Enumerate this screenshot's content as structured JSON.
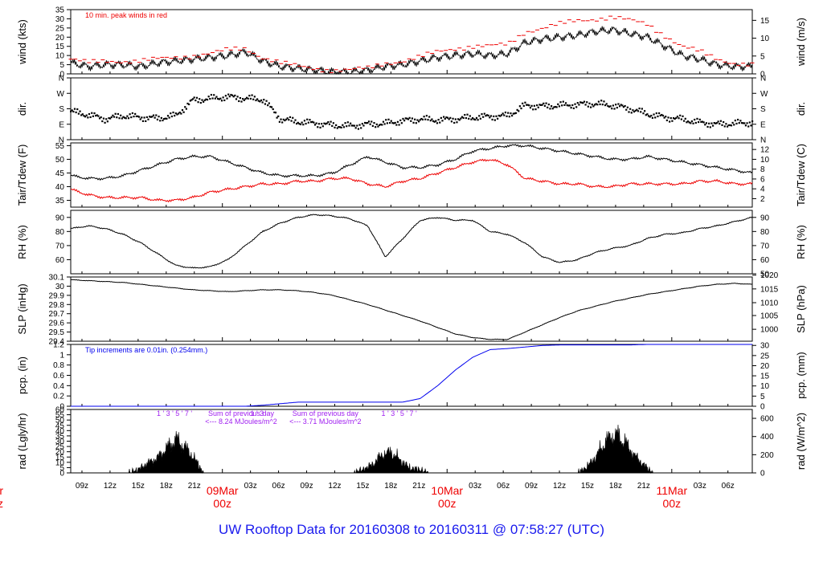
{
  "footer": {
    "title": "UW Rooftop Data for 20160308  to  20160311 @ 07:58:27  (UTC)"
  },
  "colors": {
    "series": "#000000",
    "red": "#ee0000",
    "blue": "#0000ee",
    "purple": "#a020f0"
  },
  "chart_data": [
    {
      "id": "wind",
      "type": "line",
      "ylabel": "wind (kts)",
      "ylabel_right": "wind (m/s)",
      "ylim": [
        0,
        35
      ],
      "yticks": [
        0,
        5,
        10,
        15,
        20,
        25,
        30,
        35
      ],
      "yticks_right": {
        "labels": [
          "0",
          "5",
          "10",
          "15"
        ],
        "positions": [
          0,
          9.72,
          19.44,
          29.16
        ]
      },
      "annotation": "10 min. peak winds in red",
      "series": [
        {
          "values": [
            6,
            4,
            5,
            5,
            4,
            6,
            7,
            8,
            9,
            10,
            12,
            7,
            4,
            3,
            2,
            1,
            1,
            2,
            4,
            5,
            7,
            9,
            10,
            11,
            10,
            11,
            17,
            19,
            20,
            21,
            23,
            24,
            22,
            20,
            15,
            10,
            8,
            5,
            4,
            4
          ]
        },
        {
          "marks": "dashes",
          "color": "red",
          "values": [
            8,
            6,
            7,
            7,
            7,
            8,
            9,
            10,
            11,
            13,
            14,
            9,
            6,
            4,
            3,
            2,
            2,
            3,
            6,
            7,
            9,
            12,
            14,
            15,
            15,
            16,
            23,
            25,
            27,
            29,
            30,
            31,
            29,
            27,
            21,
            15,
            12,
            8,
            6,
            5
          ]
        }
      ]
    },
    {
      "id": "dir",
      "type": "scatter",
      "ylabel": "dir.",
      "ylabel_right": "dir.",
      "ylim": [
        0,
        360
      ],
      "yticks": [
        0,
        90,
        180,
        270,
        360
      ],
      "yticklabels": [
        "N",
        "E",
        "S",
        "W",
        "N"
      ],
      "series": [
        {
          "values": [
            165,
            145,
            120,
            140,
            130,
            125,
            140,
            230,
            240,
            250,
            240,
            235,
            120,
            105,
            95,
            85,
            80,
            90,
            95,
            110,
            120,
            115,
            120,
            130,
            135,
            140,
            200,
            195,
            200,
            205,
            210,
            200,
            180,
            150,
            130,
            120,
            100,
            90,
            95,
            100
          ]
        }
      ]
    },
    {
      "id": "temp",
      "type": "line",
      "ylabel": "Tair/Tdew (F)",
      "ylabel_right": "Tair/Tdew (C)",
      "ylim": [
        32.5,
        56
      ],
      "yticks": [
        35,
        40,
        45,
        50,
        55
      ],
      "yticks_right": {
        "labels": [
          "2",
          "4",
          "6",
          "8",
          "10",
          "12"
        ],
        "positions": [
          35.6,
          39.2,
          42.8,
          46.4,
          50.0,
          53.6
        ]
      },
      "series": [
        {
          "name": "Tair",
          "color": "black",
          "values": [
            44,
            43,
            43,
            44,
            46,
            48,
            50,
            51,
            51,
            49,
            47,
            45,
            44,
            44,
            44,
            45,
            48,
            51,
            49,
            47,
            47,
            48,
            50,
            53,
            54,
            55,
            55,
            54,
            53,
            52,
            51,
            50,
            50,
            51,
            50,
            49,
            48,
            47,
            46,
            45
          ]
        },
        {
          "name": "Tdew",
          "color": "red",
          "values": [
            39,
            37,
            36,
            36,
            36,
            35,
            35,
            36,
            38,
            39,
            40,
            41,
            41,
            42,
            42,
            43,
            43,
            41,
            40,
            42,
            43,
            45,
            47,
            49,
            50,
            48,
            43,
            42,
            41,
            41,
            40,
            40,
            41,
            41,
            41,
            41,
            42,
            42,
            41,
            41
          ]
        }
      ]
    },
    {
      "id": "rh",
      "type": "line",
      "ylabel": "RH (%)",
      "ylabel_right": "RH (%)",
      "ylim": [
        50,
        95
      ],
      "yticks": [
        60,
        70,
        80,
        90
      ],
      "yticks_right": {
        "labels": [
          "50",
          "60",
          "70",
          "80",
          "90"
        ],
        "positions": [
          50,
          60,
          70,
          80,
          90
        ]
      },
      "series": [
        {
          "values": [
            82,
            84,
            82,
            78,
            72,
            64,
            56,
            54,
            55,
            60,
            70,
            80,
            86,
            90,
            92,
            91,
            89,
            84,
            62,
            75,
            88,
            90,
            88,
            88,
            80,
            78,
            72,
            62,
            58,
            60,
            65,
            68,
            70,
            75,
            78,
            79,
            82,
            84,
            87,
            90
          ]
        }
      ]
    },
    {
      "id": "slp",
      "type": "line",
      "ylabel": "SLP (inHg)",
      "ylabel_right": "SLP (hPa)",
      "ylim": [
        29.4,
        30.1
      ],
      "yticks": [
        29.4,
        29.5,
        29.6,
        29.7,
        29.8,
        29.9,
        30.0,
        30.1
      ],
      "yticks_right": {
        "labels": [
          "1000",
          "1005",
          "1010",
          "1015",
          "1020"
        ],
        "positions": [
          29.53,
          29.68,
          29.82,
          29.97,
          30.12
        ]
      },
      "series": [
        {
          "values": [
            30.07,
            30.06,
            30.05,
            30.04,
            30.02,
            30.0,
            29.98,
            29.96,
            29.95,
            29.94,
            29.95,
            29.96,
            29.96,
            29.95,
            29.93,
            29.9,
            29.85,
            29.8,
            29.74,
            29.68,
            29.62,
            29.55,
            29.48,
            29.44,
            29.42,
            29.42,
            29.5,
            29.58,
            29.66,
            29.73,
            29.78,
            29.83,
            29.87,
            29.91,
            29.94,
            29.97,
            30.0,
            30.02,
            30.03,
            30.02
          ]
        }
      ]
    },
    {
      "id": "pcp",
      "type": "line",
      "ylabel": "pcp. (in)",
      "ylabel_right": "pcp. (mm)",
      "ylim": [
        0,
        1.2
      ],
      "yticks": [
        0,
        0.2,
        0.4,
        0.6,
        0.8,
        1.0,
        1.2
      ],
      "yticks_right": {
        "labels": [
          "0",
          "5",
          "10",
          "15",
          "20",
          "25",
          "30"
        ],
        "positions": [
          0,
          0.197,
          0.394,
          0.591,
          0.787,
          0.984,
          1.181
        ]
      },
      "annotation": "Tip increments are 0.01in. (0.254mm.)",
      "series": [
        {
          "color": "blue",
          "values": [
            0,
            0,
            0,
            0,
            0,
            0,
            0,
            0,
            0,
            0,
            0,
            0.02,
            0.05,
            0.08,
            0.08,
            0.08,
            0.08,
            0.08,
            0.08,
            0.08,
            0.15,
            0.4,
            0.7,
            0.95,
            1.1,
            1.12,
            1.15,
            1.18,
            1.19,
            1.19,
            1.19,
            1.19,
            1.19,
            1.2,
            1.2,
            1.2,
            1.21,
            1.21,
            1.21,
            1.21
          ]
        }
      ]
    },
    {
      "id": "rad",
      "type": "area",
      "ylabel": "rad (Lgly/hr)",
      "ylabel_right": "rad (W/m^2)",
      "ylim": [
        0,
        60
      ],
      "yticks": [
        0,
        5,
        10,
        15,
        20,
        25,
        30,
        35,
        40,
        45,
        50,
        55,
        60
      ],
      "yticks_right": {
        "labels": [
          "0",
          "200",
          "400",
          "600"
        ],
        "positions": [
          0,
          17.2,
          34.4,
          51.6
        ]
      },
      "annotations": [
        {
          "text": "Sum of previous day",
          "x": 2,
          "color": "purple"
        },
        {
          "text": "<--- 8.24 MJoules/m^2",
          "x": 2,
          "row": 2,
          "color": "purple"
        },
        {
          "text": "Sum of previous day",
          "x": 11,
          "color": "purple"
        },
        {
          "text": "<--- 3.71 MJoules/m^2",
          "x": 11,
          "row": 2,
          "color": "purple"
        }
      ],
      "hour_marks": [
        {
          "labels": [
            "1",
            "2",
            "3",
            "4",
            "5",
            "6",
            "7",
            "8"
          ],
          "x": [
            -6.8,
            -6.3,
            -5.8,
            -5.3,
            -4.8,
            -4.3,
            -3.8,
            -3.3
          ]
        },
        {
          "labels": [
            "1",
            "2",
            "3"
          ],
          "x": [
            3.2,
            3.7,
            4.2
          ]
        },
        {
          "labels": [
            "1",
            "2",
            "3",
            "4",
            "5",
            "6",
            "7",
            "8"
          ],
          "x": [
            17.2,
            17.7,
            18.2,
            18.7,
            19.2,
            19.7,
            20.2,
            20.7
          ]
        }
      ],
      "series": [
        {
          "x": [
            -10,
            -9,
            -8,
            -7,
            -6,
            -5,
            -4,
            -3,
            -2,
            14,
            15,
            16,
            17,
            18,
            19,
            20,
            21,
            22,
            38,
            39,
            40,
            41,
            42,
            43,
            44,
            45,
            46
          ],
          "values": [
            0,
            4,
            12,
            18,
            30,
            42,
            32,
            18,
            0,
            0,
            4,
            10,
            22,
            26,
            16,
            6,
            4,
            0,
            0,
            8,
            22,
            40,
            48,
            38,
            22,
            10,
            0
          ]
        }
      ]
    }
  ],
  "x_axis": {
    "x_range": [
      -16.2,
      56.6
    ],
    "unit": "hours after 09Mar 00z",
    "ticks": [
      {
        "label": "09z",
        "x": -15
      },
      {
        "label": "12z",
        "x": -12
      },
      {
        "label": "15z",
        "x": -9
      },
      {
        "label": "18z",
        "x": -6
      },
      {
        "label": "21z",
        "x": -3
      },
      {
        "label": "03z",
        "x": 3
      },
      {
        "label": "06z",
        "x": 6
      },
      {
        "label": "09z",
        "x": 9
      },
      {
        "label": "12z",
        "x": 12
      },
      {
        "label": "15z",
        "x": 15
      },
      {
        "label": "18z",
        "x": 18
      },
      {
        "label": "21z",
        "x": 21
      },
      {
        "label": "03z",
        "x": 27
      },
      {
        "label": "06z",
        "x": 30
      },
      {
        "label": "09z",
        "x": 33
      },
      {
        "label": "12z",
        "x": 36
      },
      {
        "label": "15z",
        "x": 39
      },
      {
        "label": "18z",
        "x": 42
      },
      {
        "label": "21z",
        "x": 45
      },
      {
        "label": "03z",
        "x": 51
      },
      {
        "label": "06z",
        "x": 54
      }
    ],
    "days": [
      {
        "date": "ar",
        "hour": "z",
        "x": -24
      },
      {
        "date": "09Mar",
        "hour": "00z",
        "x": 0
      },
      {
        "date": "10Mar",
        "hour": "00z",
        "x": 24
      },
      {
        "date": "11Mar",
        "hour": "00z",
        "x": 48
      }
    ]
  }
}
